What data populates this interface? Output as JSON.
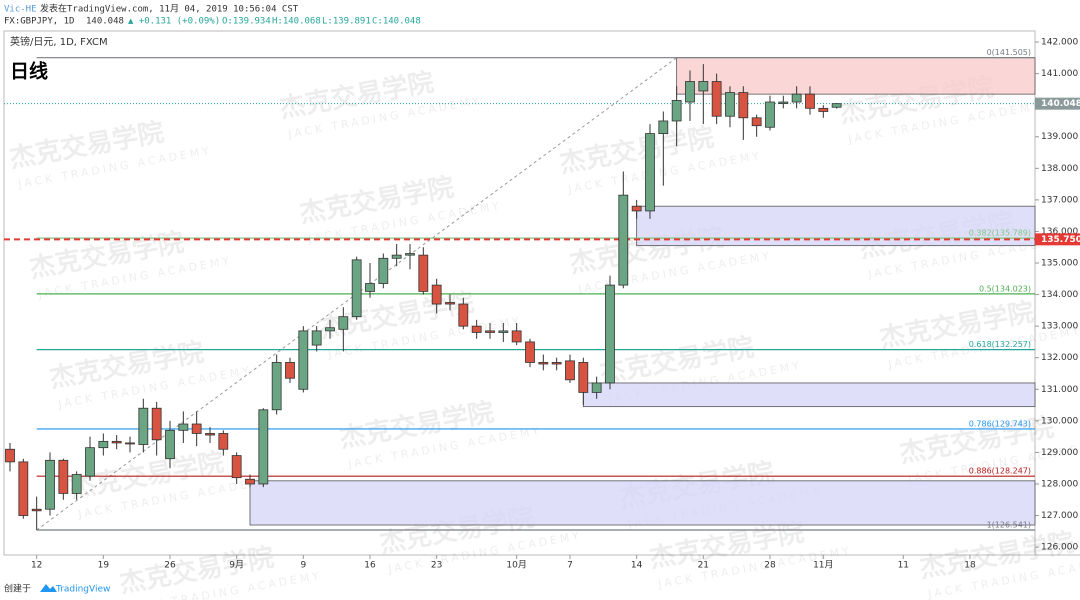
{
  "header": {
    "author": "Vic-HE",
    "published": "发表在TradingView.com, 11月 04, 2019 10:56:04 CST",
    "symbol": "FX:GBPJPY, 1D",
    "last": "140.048",
    "change": "▲ +0.131 (+0.09%)",
    "open": "O:139.934",
    "high": "H:140.068",
    "low": "L:139.891",
    "close": "C:140.048"
  },
  "chart_data": {
    "type": "candlestick",
    "legend": "英镑/日元, 1D, FXCM",
    "title": "日线",
    "watermark": {
      "cn": "杰克交易学院",
      "en": "JACK TRADING ACADEMY"
    },
    "categories": [
      null,
      null,
      "12",
      null,
      null,
      null,
      null,
      "19",
      null,
      null,
      null,
      null,
      "26",
      null,
      null,
      null,
      null,
      "9月",
      null,
      null,
      null,
      null,
      "9",
      null,
      null,
      null,
      null,
      "16",
      null,
      null,
      null,
      null,
      "23",
      null,
      null,
      null,
      null,
      null,
      "10月",
      null,
      null,
      null,
      "7",
      null,
      null,
      null,
      null,
      "14",
      null,
      null,
      null,
      null,
      "21",
      null,
      null,
      null,
      null,
      "28",
      null,
      null,
      null,
      "11月",
      null,
      null,
      null,
      null,
      null,
      "11",
      null,
      null,
      null,
      null,
      "18",
      null,
      null,
      null,
      null
    ],
    "open": [
      129.1,
      128.7,
      127.2,
      127.2,
      128.75,
      127.7,
      128.25,
      129.15,
      129.35,
      129.3,
      129.25,
      130.4,
      128.8,
      129.7,
      129.9,
      129.6,
      129.6,
      128.9,
      128.15,
      128.0,
      130.35,
      131.85,
      131.0,
      132.4,
      132.85,
      132.9,
      133.3,
      134.1,
      134.35,
      135.15,
      135.25,
      135.25,
      134.3,
      133.75,
      133.7,
      133.0,
      132.85,
      132.8,
      132.85,
      132.5,
      131.85,
      131.85,
      131.9,
      131.85,
      130.9,
      131.2,
      134.3,
      136.8,
      136.65,
      139.1,
      139.5,
      140.1,
      140.45,
      140.75,
      139.65,
      140.4,
      139.6,
      139.3,
      140.05,
      140.1,
      140.35,
      139.9,
      139.934,
      null,
      null,
      null,
      null,
      null,
      null,
      null,
      null,
      null,
      null,
      null,
      null,
      null,
      null
    ],
    "high": [
      129.3,
      128.8,
      127.6,
      129.0,
      128.8,
      128.4,
      129.5,
      129.6,
      129.55,
      129.5,
      130.7,
      130.6,
      130.0,
      130.3,
      130.3,
      129.8,
      129.7,
      129.0,
      128.3,
      130.4,
      132.1,
      132.0,
      133.0,
      133.0,
      133.2,
      133.6,
      135.2,
      135.0,
      135.3,
      135.6,
      135.6,
      135.5,
      134.5,
      134.0,
      133.9,
      133.2,
      133.1,
      133.1,
      133.1,
      132.6,
      132.1,
      132.0,
      132.1,
      132.0,
      131.4,
      134.6,
      137.9,
      137.0,
      139.4,
      139.8,
      140.6,
      141.1,
      141.3,
      141.0,
      140.6,
      140.6,
      139.7,
      140.3,
      140.3,
      140.6,
      140.6,
      140.0,
      140.068,
      null,
      null,
      null,
      null,
      null,
      null,
      null,
      null,
      null,
      null,
      null,
      null,
      null,
      null
    ],
    "low": [
      128.4,
      126.9,
      126.541,
      127.0,
      127.5,
      127.5,
      128.1,
      128.9,
      129.1,
      129.0,
      129.0,
      128.9,
      128.5,
      129.3,
      129.2,
      129.3,
      128.9,
      128.0,
      127.9,
      127.9,
      130.2,
      131.2,
      130.9,
      132.2,
      132.6,
      132.2,
      133.2,
      133.9,
      134.2,
      134.9,
      134.8,
      134.0,
      133.4,
      133.5,
      132.9,
      132.6,
      132.6,
      132.5,
      132.4,
      131.7,
      131.6,
      131.6,
      131.2,
      130.5,
      130.7,
      131.0,
      134.2,
      136.4,
      136.4,
      137.45,
      138.7,
      139.5,
      139.4,
      139.4,
      139.3,
      138.9,
      139.0,
      139.2,
      139.9,
      139.9,
      139.7,
      139.6,
      139.891,
      null,
      null,
      null,
      null,
      null,
      null,
      null,
      null,
      null,
      null,
      null,
      null,
      null,
      null
    ],
    "close": [
      128.7,
      127.0,
      127.15,
      128.75,
      127.7,
      128.3,
      129.15,
      129.35,
      129.3,
      129.28,
      130.4,
      129.4,
      129.7,
      129.9,
      129.6,
      129.55,
      129.1,
      128.2,
      128.0,
      130.35,
      131.85,
      131.35,
      132.85,
      132.85,
      132.95,
      133.3,
      135.1,
      134.35,
      135.15,
      135.25,
      135.3,
      134.1,
      133.7,
      133.7,
      133.0,
      132.8,
      132.8,
      132.85,
      132.5,
      131.85,
      131.8,
      131.8,
      131.3,
      130.9,
      131.2,
      134.3,
      137.15,
      136.65,
      139.1,
      139.5,
      140.15,
      140.75,
      140.75,
      139.65,
      140.4,
      139.6,
      139.35,
      140.1,
      140.1,
      140.35,
      139.9,
      139.8,
      140.048,
      null,
      null,
      null,
      null,
      null,
      null,
      null,
      null,
      null,
      null,
      null,
      null,
      null,
      null
    ],
    "up_color": "#6ba583",
    "down_color": "#d75442",
    "ylim": [
      125.75,
      142.35
    ],
    "yticks": [
      {
        "value": 126,
        "label": "126.000"
      },
      {
        "value": 127,
        "label": "127.000"
      },
      {
        "value": 128,
        "label": "128.000"
      },
      {
        "value": 129,
        "label": "129.000"
      },
      {
        "value": 130,
        "label": "130.000"
      },
      {
        "value": 131,
        "label": "131.000"
      },
      {
        "value": 132,
        "label": "132.000"
      },
      {
        "value": 133,
        "label": "133.000"
      },
      {
        "value": 134,
        "label": "134.000"
      },
      {
        "value": 135,
        "label": "135.000"
      },
      {
        "value": 136,
        "label": "136.000"
      },
      {
        "value": 137,
        "label": "137.000"
      },
      {
        "value": 138,
        "label": "138.000"
      },
      {
        "value": 139,
        "label": "139.000"
      },
      {
        "value": 140,
        "label": "140.000"
      },
      {
        "value": 141,
        "label": "141.000"
      },
      {
        "value": 142,
        "label": "142.000"
      }
    ],
    "fib": {
      "from": 2,
      "to": 50,
      "levels": [
        {
          "value": 141.505,
          "label": "0(141.505)",
          "color": "#787b86"
        },
        {
          "value": 135.789,
          "label": "0.382(135.789)",
          "color": "#81c784"
        },
        {
          "value": 134.023,
          "label": "0.5(134.023)",
          "color": "#4caf50"
        },
        {
          "value": 132.257,
          "label": "0.618(132.257)",
          "color": "#26a69a"
        },
        {
          "value": 129.743,
          "label": "0.786(129.743)",
          "color": "#2196f3"
        },
        {
          "value": 128.247,
          "label": "0.886(128.247)",
          "color": "#b71c1c"
        },
        {
          "value": 126.541,
          "label": "1(126.541)",
          "color": "#787b86"
        }
      ]
    },
    "zones": [
      {
        "from": 50,
        "top": 141.505,
        "bottom": 140.35,
        "color": "#f8c8c8"
      },
      {
        "from": 47,
        "top": 136.8,
        "bottom": 135.55,
        "color": "#d4d4f7"
      },
      {
        "from": 43,
        "top": 131.2,
        "bottom": 130.45,
        "color": "#d4d4f7"
      },
      {
        "from": 18,
        "top": 128.1,
        "bottom": 126.7,
        "color": "#d4d4f7"
      }
    ],
    "alert_line": {
      "value": 135.75,
      "label": "135.750",
      "color": "#e53935"
    },
    "last_price": {
      "value": 140.048,
      "label": "140.048",
      "color": "#26a69a"
    }
  },
  "footer": {
    "created": "创建于",
    "brand": "TradingView"
  }
}
